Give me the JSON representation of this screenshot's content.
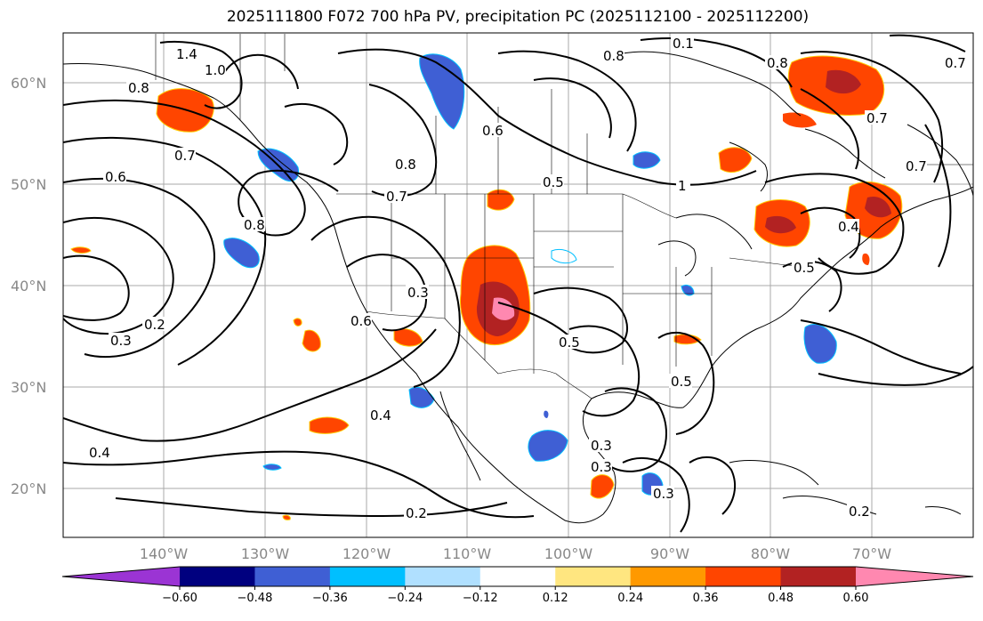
{
  "title": "2025111800 F072 700 hPa PV, precipitation PC (2025112100 - 2025112200)",
  "lat_labels": [
    "60°N",
    "50°N",
    "40°N",
    "30°N",
    "20°N"
  ],
  "lon_labels": [
    "140°W",
    "130°W",
    "120°W",
    "110°W",
    "100°W",
    "90°W",
    "80°W",
    "70°W"
  ],
  "colorbar": {
    "ticks": [
      "−0.60",
      "−0.48",
      "−0.36",
      "−0.24",
      "−0.12",
      "0.12",
      "0.24",
      "0.36",
      "0.48",
      "0.60"
    ],
    "colors": [
      "#9b34d4",
      "#00007f",
      "#3f5fd4",
      "#00bfff",
      "#b0e0ff",
      "#ffffff",
      "#ffe680",
      "#ff9900",
      "#ff4500",
      "#b22222",
      "#ff88b0"
    ]
  },
  "contour_labels": [
    "1.4",
    "1.0",
    "0.8",
    "0.7",
    "0.6",
    "0.8",
    "0.8",
    "0.7",
    "0.8",
    "0.5",
    "0.6",
    "0.8",
    "0.7",
    "0.1",
    "0.7",
    "0.7",
    "0.3",
    "0.2",
    "0.3",
    "0.6",
    "0.4",
    "0.5",
    "0.3",
    "0.5",
    "0.5",
    "0.3",
    "0.3",
    "0.2",
    "0.4",
    "0.4",
    "0.2",
    "1"
  ]
}
